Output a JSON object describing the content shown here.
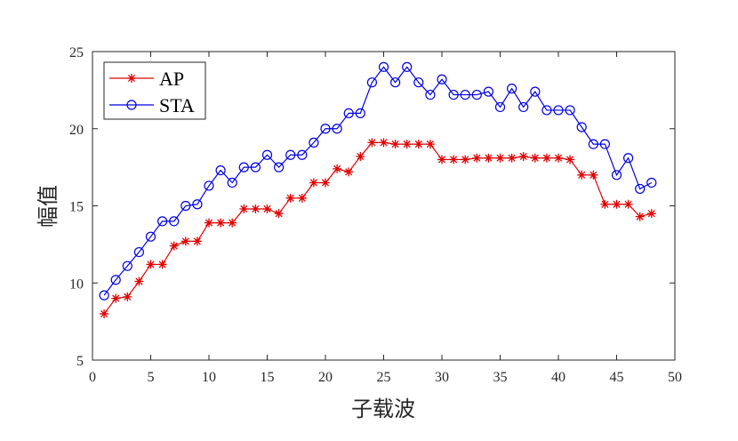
{
  "chart_data": {
    "type": "line",
    "xlabel": "子载波",
    "ylabel": "幅值",
    "xlim": [
      0,
      50
    ],
    "ylim": [
      5,
      25
    ],
    "xticks": [
      0,
      5,
      10,
      15,
      20,
      25,
      30,
      35,
      40,
      45,
      50
    ],
    "yticks": [
      5,
      10,
      15,
      20,
      25
    ],
    "grid": false,
    "legend_position": "top-left",
    "x": [
      1,
      2,
      3,
      4,
      5,
      6,
      7,
      8,
      9,
      10,
      11,
      12,
      13,
      14,
      15,
      16,
      17,
      18,
      19,
      20,
      21,
      22,
      23,
      24,
      25,
      26,
      27,
      28,
      29,
      30,
      31,
      32,
      33,
      34,
      35,
      36,
      37,
      38,
      39,
      40,
      41,
      42,
      43,
      44,
      45,
      46,
      47,
      48
    ],
    "series": [
      {
        "name": "AP",
        "color": "#e00000",
        "marker": "asterisk",
        "values": [
          8.0,
          9.0,
          9.1,
          10.1,
          11.2,
          11.2,
          12.4,
          12.7,
          12.7,
          13.9,
          13.9,
          13.9,
          14.8,
          14.8,
          14.8,
          14.5,
          15.5,
          15.5,
          16.5,
          16.5,
          17.4,
          17.2,
          18.2,
          19.1,
          19.1,
          19.0,
          19.0,
          19.0,
          19.0,
          18.0,
          18.0,
          18.0,
          18.1,
          18.1,
          18.1,
          18.1,
          18.2,
          18.1,
          18.1,
          18.1,
          18.0,
          17.0,
          17.0,
          15.1,
          15.1,
          15.1,
          14.3,
          14.5
        ]
      },
      {
        "name": "STA",
        "color": "#0000e0",
        "marker": "circle",
        "values": [
          9.2,
          10.2,
          11.1,
          12.0,
          13.0,
          14.0,
          14.0,
          15.0,
          15.1,
          16.3,
          17.3,
          16.5,
          17.5,
          17.5,
          18.3,
          17.5,
          18.3,
          18.3,
          19.1,
          20.0,
          20.0,
          21.0,
          21.0,
          23.0,
          24.0,
          23.0,
          24.0,
          23.0,
          22.2,
          23.2,
          22.2,
          22.2,
          22.2,
          22.4,
          21.4,
          22.6,
          21.4,
          22.4,
          21.2,
          21.2,
          21.2,
          20.1,
          19.0,
          19.0,
          17.0,
          18.1,
          16.1,
          16.5
        ]
      }
    ]
  }
}
